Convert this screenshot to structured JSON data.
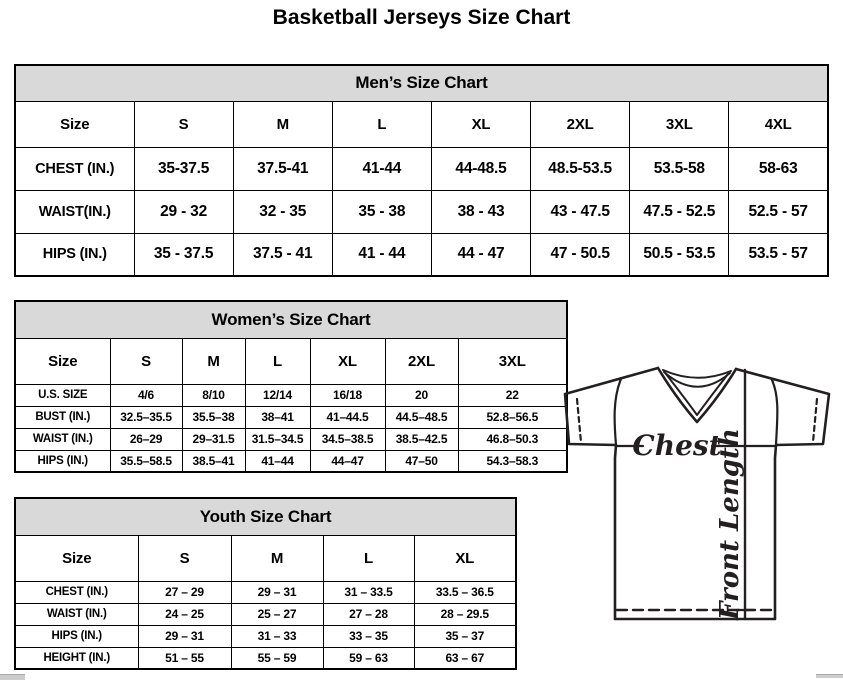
{
  "title": "Basketball Jerseys Size Chart",
  "tables": {
    "men": {
      "title": "Men’s Size Chart",
      "columns": [
        "Size",
        "S",
        "M",
        "L",
        "XL",
        "2XL",
        "3XL",
        "4XL"
      ],
      "rows": [
        {
          "label": "CHEST (IN.)",
          "values": [
            "35-37.5",
            "37.5-41",
            "41-44",
            "44-48.5",
            "48.5-53.5",
            "53.5-58",
            "58-63"
          ]
        },
        {
          "label": "WAIST(IN.)",
          "values": [
            "29 - 32",
            "32 - 35",
            "35 - 38",
            "38 - 43",
            "43 - 47.5",
            "47.5 - 52.5",
            "52.5 - 57"
          ]
        },
        {
          "label": "HIPS (IN.)",
          "values": [
            "35 - 37.5",
            "37.5 - 41",
            "41 - 44",
            "44 - 47",
            "47 - 50.5",
            "50.5 - 53.5",
            "53.5 - 57"
          ]
        }
      ]
    },
    "women": {
      "title": "Women’s Size Chart",
      "columns": [
        "Size",
        "S",
        "M",
        "L",
        "XL",
        "2XL",
        "3XL"
      ],
      "rows": [
        {
          "label": "U.S. SIZE",
          "values": [
            "4/6",
            "8/10",
            "12/14",
            "16/18",
            "20",
            "22"
          ]
        },
        {
          "label": "BUST (IN.)",
          "values": [
            "32.5–35.5",
            "35.5–38",
            "38–41",
            "41–44.5",
            "44.5–48.5",
            "52.8–56.5"
          ]
        },
        {
          "label": "WAIST (IN.)",
          "values": [
            "26–29",
            "29–31.5",
            "31.5–34.5",
            "34.5–38.5",
            "38.5–42.5",
            "46.8–50.3"
          ]
        },
        {
          "label": "HIPS (IN.)",
          "values": [
            "35.5–58.5",
            "38.5–41",
            "41–44",
            "44–47",
            "47–50",
            "54.3–58.3"
          ]
        }
      ]
    },
    "youth": {
      "title": "Youth Size Chart",
      "columns": [
        "Size",
        "S",
        "M",
        "L",
        "XL"
      ],
      "rows": [
        {
          "label": "CHEST (IN.)",
          "values": [
            "27 – 29",
            "29 – 31",
            "31 – 33.5",
            "33.5 – 36.5"
          ]
        },
        {
          "label": "WAIST (IN.)",
          "values": [
            "24 – 25",
            "25 – 27",
            "27 – 28",
            "28 – 29.5"
          ]
        },
        {
          "label": "HIPS (IN.)",
          "values": [
            "29 – 31",
            "31 – 33",
            "33 – 35",
            "35 – 37"
          ]
        },
        {
          "label": "HEIGHT (IN.)",
          "values": [
            "51 – 55",
            "55 – 59",
            "59 – 63",
            "63 – 67"
          ]
        }
      ]
    }
  },
  "diagram": {
    "chest_label": "Chest",
    "front_length_label": "Front Length"
  },
  "colors": {
    "table_border": "#000000",
    "header_band": "#d9d9d9",
    "jersey_stroke": "#231f20"
  }
}
